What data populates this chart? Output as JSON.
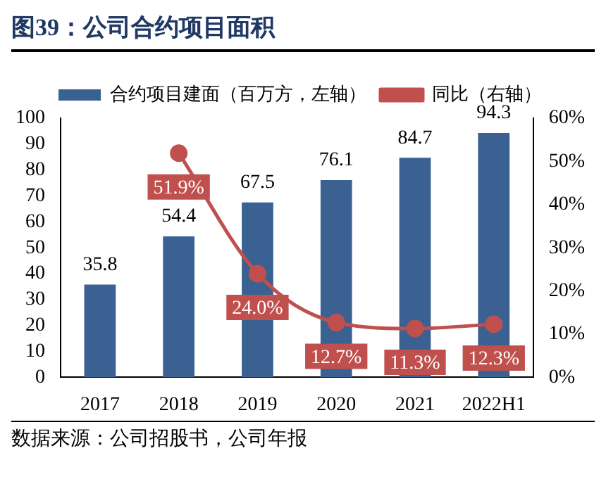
{
  "chart_data": {
    "type": "bar",
    "title": "图39：公司合约项目面积",
    "categories": [
      "2017",
      "2018",
      "2019",
      "2020",
      "2021",
      "2022H1"
    ],
    "series": [
      {
        "name": "合约项目建面（百万方，左轴）",
        "color": "#3a6191",
        "values": [
          35.8,
          54.4,
          67.5,
          76.1,
          84.7,
          94.3
        ],
        "value_labels": [
          "35.8",
          "54.4",
          "67.5",
          "76.1",
          "84.7",
          "94.3"
        ]
      },
      {
        "name": "同比（右轴）",
        "type": "line",
        "axis": "y2",
        "color": "#c0504d",
        "marker": "circle",
        "values": [
          null,
          51.9,
          24.0,
          12.7,
          11.3,
          12.3
        ],
        "value_labels": [
          null,
          "51.9%",
          "24.0%",
          "12.7%",
          "11.3%",
          "12.3%"
        ]
      }
    ],
    "ylim": [
      0,
      100
    ],
    "yticks": [
      0,
      10,
      20,
      30,
      40,
      50,
      60,
      70,
      80,
      90,
      100
    ],
    "y2lim": [
      0,
      60
    ],
    "y2ticks": [
      {
        "value": 0,
        "label": "0%"
      },
      {
        "value": 10,
        "label": "10%"
      },
      {
        "value": 20,
        "label": "20%"
      },
      {
        "value": 30,
        "label": "30%"
      },
      {
        "value": 40,
        "label": "40%"
      },
      {
        "value": 50,
        "label": "50%"
      },
      {
        "value": 60,
        "label": "60%"
      }
    ],
    "grid": false,
    "legend": "top",
    "annotations": [
      "数据来源：公司招股书，公司年报"
    ]
  }
}
